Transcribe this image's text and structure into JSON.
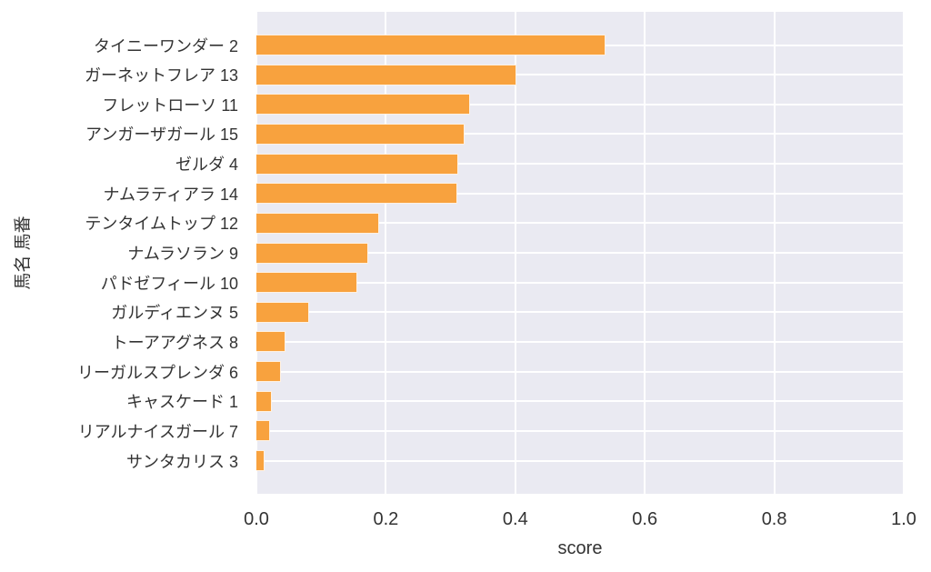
{
  "chart_data": {
    "type": "bar",
    "orientation": "horizontal",
    "xlabel": "score",
    "ylabel": "馬名 馬番",
    "categories": [
      "タイニーワンダー 2",
      "ガーネットフレア 13",
      "フレットローソ 11",
      "アンガーザガール 15",
      "ゼルダ 4",
      "ナムラティアラ 14",
      "テンタイムトップ 12",
      "ナムラソラン 9",
      "パドゼフィール 10",
      "ガルディエンヌ 5",
      "トーアアグネス 8",
      "リーガルスプレンダ 6",
      "キャスケード 1",
      "リアルナイスガール 7",
      "サンタカリス 3"
    ],
    "values": [
      0.54,
      0.401,
      0.33,
      0.322,
      0.312,
      0.31,
      0.19,
      0.173,
      0.156,
      0.082,
      0.045,
      0.038,
      0.024,
      0.021,
      0.013
    ],
    "xlim": [
      0.0,
      1.0
    ],
    "xticks": [
      0.0,
      0.2,
      0.4,
      0.6,
      0.8,
      1.0
    ],
    "xtick_labels": [
      "0.0",
      "0.2",
      "0.4",
      "0.6",
      "0.8",
      "1.0"
    ],
    "grid": true,
    "legend": false,
    "bar_color": "#f8a23e",
    "plot_background": "#eaeaf2",
    "gridline_color": "#ffffff",
    "text_color": "#333333"
  }
}
